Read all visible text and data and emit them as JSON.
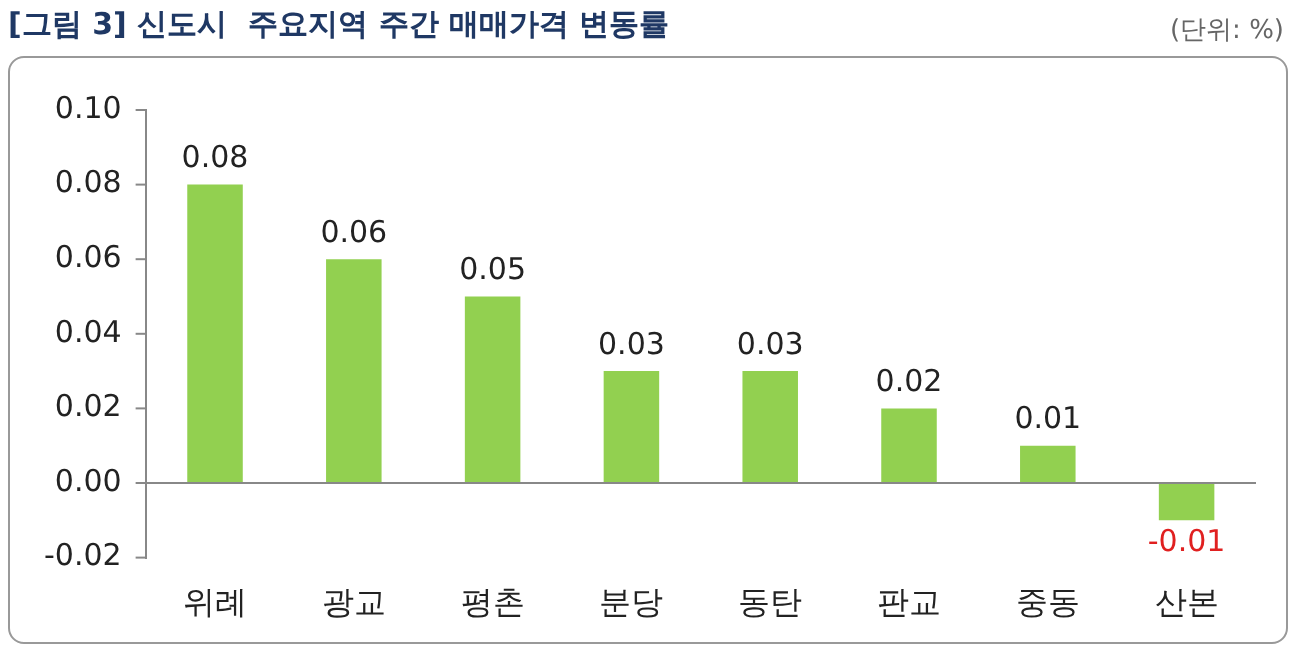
{
  "chart_data": {
    "type": "bar",
    "title": "[그림 3] 신도시  주요지역 주간 매매가격 변동률",
    "annotations": [
      "(단위: %)"
    ],
    "categories": [
      "위례",
      "광교",
      "평촌",
      "분당",
      "동탄",
      "판교",
      "중동",
      "산본"
    ],
    "values": [
      0.08,
      0.06,
      0.05,
      0.03,
      0.03,
      0.02,
      0.01,
      -0.01
    ],
    "color": "#92d050",
    "ylim": [
      -0.02,
      0.1
    ],
    "yticks": [
      {
        "value": -0.02,
        "label": "-0.02"
      },
      {
        "value": 0,
        "label": "0.00"
      },
      {
        "value": 0.02,
        "label": "0.02"
      },
      {
        "value": 0.04,
        "label": "0.04"
      },
      {
        "value": 0.06,
        "label": "0.06"
      },
      {
        "value": 0.08,
        "label": "0.08"
      },
      {
        "value": 0.1,
        "label": "0.10"
      }
    ],
    "data_labels": true,
    "legend": false
  }
}
